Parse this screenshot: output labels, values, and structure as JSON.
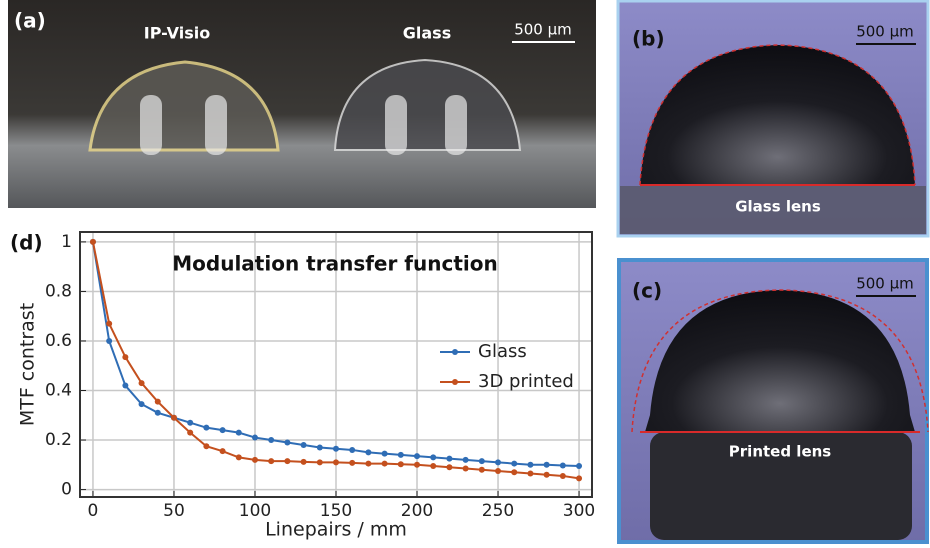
{
  "panels": {
    "a": {
      "label": "(a)",
      "left": "IP-Visio",
      "right": "Glass",
      "scale": "500 µm"
    },
    "b": {
      "label": "(b)",
      "scale": "500 µm",
      "caption": "Glass lens"
    },
    "c": {
      "label": "(c)",
      "scale": "500 µm",
      "caption": "Printed lens"
    },
    "d": {
      "label": "(d)"
    }
  },
  "chart_data": {
    "type": "line",
    "title": "Modulation transfer function",
    "xlabel": "Linepairs / mm",
    "ylabel": "MTF contrast",
    "x": [
      0,
      10,
      20,
      30,
      40,
      50,
      60,
      70,
      80,
      90,
      100,
      110,
      120,
      130,
      140,
      150,
      160,
      170,
      180,
      190,
      200,
      210,
      220,
      230,
      240,
      250,
      260,
      270,
      280,
      290,
      300
    ],
    "series": [
      {
        "name": "Glass",
        "color": "#2f6db5",
        "values": [
          1,
          0.6,
          0.42,
          0.345,
          0.31,
          0.29,
          0.27,
          0.25,
          0.24,
          0.23,
          0.21,
          0.2,
          0.19,
          0.18,
          0.17,
          0.165,
          0.16,
          0.15,
          0.145,
          0.14,
          0.135,
          0.13,
          0.125,
          0.12,
          0.115,
          0.11,
          0.105,
          0.1,
          0.1,
          0.097,
          0.095
        ]
      },
      {
        "name": "3D printed",
        "color": "#c4501e",
        "values": [
          1,
          0.67,
          0.535,
          0.43,
          0.355,
          0.29,
          0.23,
          0.175,
          0.155,
          0.13,
          0.12,
          0.115,
          0.115,
          0.112,
          0.11,
          0.11,
          0.108,
          0.105,
          0.105,
          0.102,
          0.1,
          0.095,
          0.09,
          0.085,
          0.08,
          0.075,
          0.07,
          0.065,
          0.06,
          0.055,
          0.045
        ]
      }
    ],
    "xlim": [
      -8,
      308
    ],
    "ylim": [
      -0.03,
      1.04
    ],
    "xticks": [
      0,
      50,
      100,
      150,
      200,
      250,
      300
    ],
    "yticks": [
      0,
      0.2,
      0.4,
      0.6,
      0.8,
      1
    ],
    "grid": true,
    "legend": "right"
  }
}
